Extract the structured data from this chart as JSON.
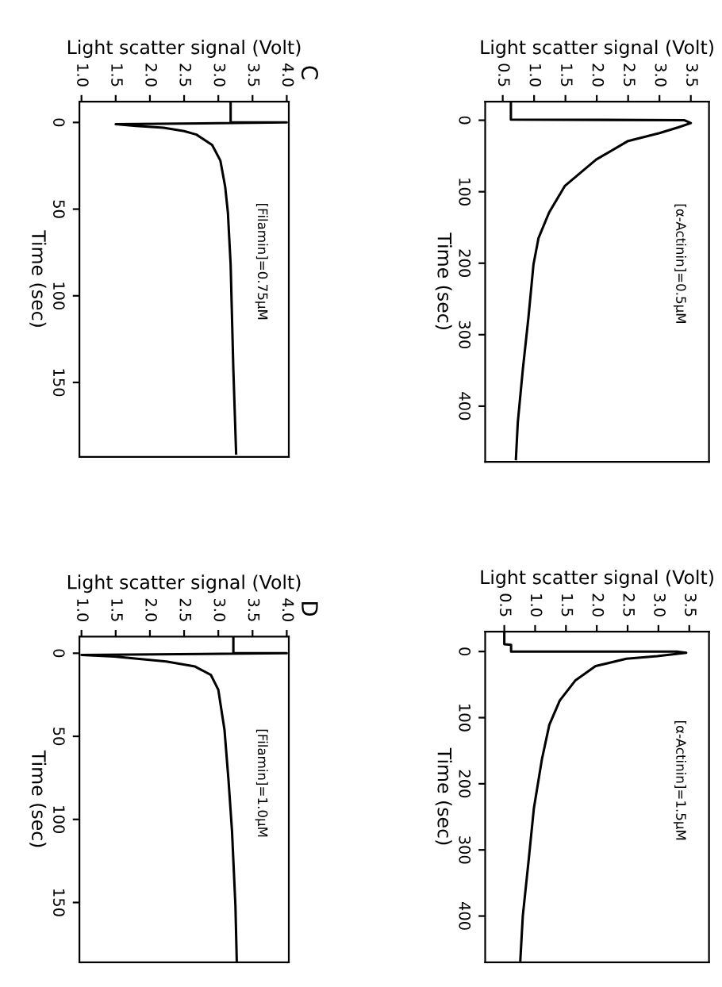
{
  "chart_data": [
    {
      "type": "line",
      "title": "D",
      "xlabel": "Light scatter signal (Volt)",
      "ylabel": "Time (sec)",
      "annotations": [
        "[Filamin]=1.0µM"
      ],
      "x": [
        3.22,
        3.22,
        4.0,
        1.0,
        1.48,
        2.24,
        2.66,
        2.89,
        3.0,
        3.09,
        3.15,
        3.2,
        3.25,
        3.27
      ],
      "series": [
        {
          "color": "#000000",
          "values": [
            -10,
            0,
            0,
            1,
            2,
            5,
            8,
            13,
            22,
            46,
            77,
            107,
            152,
            186
          ]
        }
      ],
      "ylim": [
        186,
        -10
      ],
      "yticks": [
        0,
        50,
        100,
        150
      ],
      "xlim": [
        0.97,
        4.03
      ],
      "xticks": [
        {
          "value": 1.0,
          "label": "1.0"
        },
        {
          "value": 1.5,
          "label": "1.5"
        },
        {
          "value": 2.0,
          "label": "2.0"
        },
        {
          "value": 2.5,
          "label": "2.5"
        },
        {
          "value": 3.0,
          "label": "3.0"
        },
        {
          "value": 3.5,
          "label": "3.5"
        },
        {
          "value": 4.0,
          "label": "4.0"
        }
      ]
    },
    {
      "type": "line",
      "xlabel": "Light scatter signal (Volt)",
      "ylabel": "Time (sec)",
      "annotations": [
        "[α-Actinin]=1.5µM"
      ],
      "x": [
        0.5,
        0.5,
        0.61,
        0.61,
        3.3,
        3.45,
        2.98,
        2.48,
        1.98,
        1.65,
        1.4,
        1.23,
        1.11,
        0.98,
        0.9,
        0.8,
        0.76
      ],
      "series": [
        {
          "color": "#000000",
          "values": [
            -30,
            -11,
            -10,
            0,
            0,
            2,
            7,
            11,
            22,
            44,
            74,
            111,
            163,
            237,
            311,
            400,
            467
          ]
        }
      ],
      "ylim": [
        470,
        -30
      ],
      "yticks": [
        0,
        100,
        200,
        300,
        400
      ],
      "xlim": [
        0.19,
        3.82
      ],
      "xticks": [
        {
          "value": 0.5,
          "label": "0.5"
        },
        {
          "value": 1.0,
          "label": "1.0"
        },
        {
          "value": 1.5,
          "label": "1.5"
        },
        {
          "value": 2.0,
          "label": "2.0"
        },
        {
          "value": 2.5,
          "label": "2.5"
        },
        {
          "value": 3.0,
          "label": "3.0"
        },
        {
          "value": 3.5,
          "label": "3.5"
        }
      ]
    },
    {
      "type": "line",
      "title": "C",
      "xlabel": "Light scatter signal (Volt)",
      "ylabel": "Time (sec)",
      "annotations": [
        "[Filamin]=0.75µM"
      ],
      "x": [
        3.18,
        3.18,
        4.0,
        1.5,
        1.8,
        2.2,
        2.5,
        2.68,
        2.91,
        3.03,
        3.1,
        3.14,
        3.18,
        3.22,
        3.26
      ],
      "series": [
        {
          "color": "#000000",
          "values": [
            -12,
            0,
            0,
            1,
            2,
            3,
            5,
            7,
            13,
            22,
            37,
            52,
            82,
            143,
            191
          ]
        }
      ],
      "ylim": [
        193,
        -12
      ],
      "yticks": [
        0,
        50,
        100,
        150
      ],
      "xlim": [
        0.97,
        4.03
      ],
      "xticks": [
        {
          "value": 1.0,
          "label": "1.0"
        },
        {
          "value": 1.5,
          "label": "1.5"
        },
        {
          "value": 2.0,
          "label": "2.0"
        },
        {
          "value": 2.5,
          "label": "2.5"
        },
        {
          "value": 3.0,
          "label": "3.0"
        },
        {
          "value": 3.5,
          "label": "3.5"
        },
        {
          "value": 4.0,
          "label": "4.0"
        }
      ]
    },
    {
      "type": "line",
      "xlabel": "Light scatter signal (Volt)",
      "ylabel": "Time (sec)",
      "annotations": [
        "[α-Actinin]=0.5µM"
      ],
      "x": [
        0.63,
        0.63,
        3.4,
        3.5,
        3.3,
        3.0,
        2.5,
        1.99,
        1.49,
        1.24,
        1.07,
        0.99,
        0.91,
        0.82,
        0.74,
        0.71
      ],
      "series": [
        {
          "color": "#000000",
          "values": [
            -26,
            -1,
            0,
            4,
            10,
            18,
            29,
            55,
            92,
            129,
            165,
            202,
            276,
            349,
            423,
            474
          ]
        }
      ],
      "ylim": [
        478,
        -26
      ],
      "yticks": [
        0,
        100,
        200,
        300,
        400
      ],
      "xlim": [
        0.22,
        3.79
      ],
      "xticks": [
        {
          "value": 0.5,
          "label": "0.5"
        },
        {
          "value": 1.0,
          "label": "1.0"
        },
        {
          "value": 1.5,
          "label": "1.5"
        },
        {
          "value": 2.0,
          "label": "2.0"
        },
        {
          "value": 2.5,
          "label": "2.5"
        },
        {
          "value": 3.0,
          "label": "3.0"
        },
        {
          "value": 3.5,
          "label": "3.5"
        }
      ]
    }
  ]
}
